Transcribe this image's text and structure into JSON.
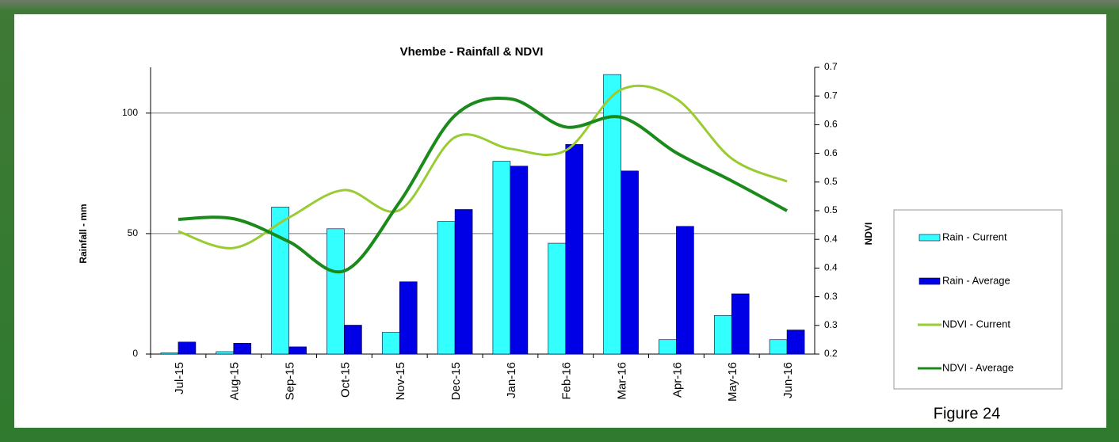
{
  "chart_data": {
    "type": "bar",
    "title": "Vhembe - Rainfall & NDVI",
    "ylabel": "Rainfall - mm",
    "y2label": "NDVI",
    "caption": "Figure 24",
    "categories": [
      "Jul-15",
      "Aug-15",
      "Sep-15",
      "Oct-15",
      "Nov-15",
      "Dec-15",
      "Jan-16",
      "Feb-16",
      "Mar-16",
      "Apr-16",
      "May-16",
      "Jun-16"
    ],
    "series": [
      {
        "name": "Rain - Current",
        "type": "bar",
        "color": "#33ffff",
        "values": [
          0.5,
          1,
          61,
          52,
          9,
          55,
          80,
          46,
          116,
          6,
          16,
          6
        ]
      },
      {
        "name": "Rain - Average",
        "type": "bar",
        "color": "#0000e6",
        "values": [
          5,
          4.5,
          3,
          12,
          30,
          60,
          78,
          87,
          76,
          53,
          25,
          10
        ]
      },
      {
        "name": "NDVI - Current",
        "type": "line",
        "axis": "y2",
        "color": "#99cc33",
        "values": [
          0.414,
          0.385,
          0.438,
          0.486,
          0.451,
          0.578,
          0.558,
          0.555,
          0.661,
          0.645,
          0.541,
          0.501
        ]
      },
      {
        "name": "NDVI - Average",
        "type": "line",
        "axis": "y2",
        "color": "#1a8a1a",
        "values": [
          0.435,
          0.436,
          0.396,
          0.345,
          0.465,
          0.616,
          0.645,
          0.596,
          0.613,
          0.551,
          0.502,
          0.45
        ]
      }
    ],
    "ylim": [
      0,
      119
    ],
    "yticks": [
      0,
      50,
      100
    ],
    "y2lim": [
      0.2,
      0.7
    ],
    "y2ticks": [
      0.2,
      {
        "value": 0.25,
        "label": "0.3"
      },
      0.3,
      {
        "value": 0.35,
        "label": "0.4"
      },
      0.4,
      {
        "value": 0.45,
        "label": "0.5"
      },
      0.5,
      {
        "value": 0.55,
        "label": "0.6"
      },
      0.6,
      {
        "value": 0.65,
        "label": "0.7"
      },
      0.7
    ],
    "grid": true,
    "legend": "right"
  }
}
